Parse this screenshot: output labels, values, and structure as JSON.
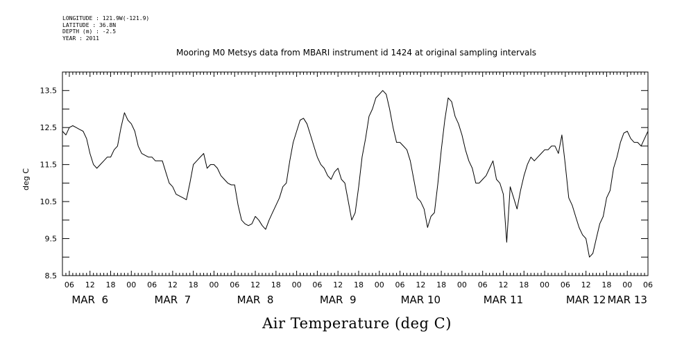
{
  "header": {
    "lines": [
      "LONGITUDE : 121.9W(-121.9)",
      "LATITUDE : 36.8N",
      "DEPTH (m) : -2.5",
      "YEAR : 2011"
    ]
  },
  "chart_data": {
    "type": "line",
    "title": "Mooring M0 Metsys data from MBARI instrument id 1424 at original sampling intervals",
    "xlabel": "Air Temperature (deg C)",
    "ylabel": "deg C",
    "ylim": [
      8.5,
      14.0
    ],
    "yticks": [
      8.5,
      9.5,
      10.5,
      11.5,
      12.5,
      13.5
    ],
    "xlim_hours": [
      4,
      174
    ],
    "hour_ticks": [
      "06",
      "12",
      "18",
      "00",
      "06",
      "12",
      "18",
      "00",
      "06",
      "12",
      "18",
      "00",
      "06",
      "12",
      "18",
      "00",
      "06",
      "12",
      "18",
      "00",
      "06",
      "12",
      "18",
      "00",
      "06",
      "12",
      "18",
      "00",
      "06"
    ],
    "day_labels": [
      "MAR  6",
      "MAR  7",
      "MAR  8",
      "MAR  9",
      "MAR 10",
      "MAR 11",
      "MAR 12",
      "MAR 13"
    ],
    "grid": false,
    "series": [
      {
        "x": [
          4,
          5,
          6,
          7,
          8,
          9,
          10,
          11,
          12,
          13,
          14,
          15,
          16,
          17,
          18,
          19,
          20,
          21,
          22,
          23,
          24,
          25,
          26,
          27,
          28,
          29,
          30,
          31,
          32,
          33,
          34,
          35,
          36,
          37,
          38,
          39,
          40,
          41,
          42,
          43,
          44,
          45,
          46,
          47,
          48,
          49,
          50,
          51,
          52,
          53,
          54,
          55,
          56,
          57,
          58,
          59,
          60,
          61,
          62,
          63,
          64,
          65,
          66,
          67,
          68,
          69,
          70,
          71,
          72,
          73,
          74,
          75,
          76,
          77,
          78,
          79,
          80,
          81,
          82,
          83,
          84,
          85,
          86,
          87,
          88,
          89,
          90,
          91,
          92,
          93,
          94,
          95,
          96,
          97,
          98,
          99,
          100,
          101,
          102,
          103,
          104,
          105,
          106,
          107,
          108,
          109,
          110,
          111,
          112,
          113,
          114,
          115,
          116,
          117,
          118,
          119,
          120,
          121,
          122,
          123,
          124,
          125,
          126,
          127,
          128,
          129,
          130,
          131,
          132,
          133,
          134,
          135,
          136,
          137,
          138,
          139,
          140,
          141,
          142,
          143,
          144,
          145,
          146,
          147,
          148,
          149,
          150,
          151,
          152,
          153,
          154,
          155,
          156,
          157,
          158,
          159,
          160,
          161,
          162,
          163,
          164,
          165,
          166,
          167,
          168,
          169,
          170,
          171,
          172,
          173,
          174
        ],
        "y": [
          12.4,
          12.3,
          12.5,
          12.55,
          12.5,
          12.45,
          12.4,
          12.2,
          11.8,
          11.5,
          11.4,
          11.5,
          11.6,
          11.7,
          11.7,
          11.9,
          12.0,
          12.5,
          12.9,
          12.7,
          12.6,
          12.4,
          12.0,
          11.8,
          11.75,
          11.7,
          11.7,
          11.6,
          11.6,
          11.6,
          11.3,
          11.0,
          10.9,
          10.7,
          10.65,
          10.6,
          10.55,
          11.0,
          11.5,
          11.6,
          11.7,
          11.8,
          11.4,
          11.5,
          11.5,
          11.4,
          11.2,
          11.1,
          11.0,
          10.95,
          10.95,
          10.4,
          10.0,
          9.9,
          9.85,
          9.9,
          10.1,
          10.0,
          9.85,
          9.75,
          10.0,
          10.2,
          10.4,
          10.6,
          10.9,
          11.0,
          11.6,
          12.1,
          12.4,
          12.7,
          12.75,
          12.6,
          12.3,
          12.0,
          11.7,
          11.5,
          11.4,
          11.2,
          11.1,
          11.3,
          11.4,
          11.1,
          11.0,
          10.5,
          10.0,
          10.2,
          10.9,
          11.7,
          12.2,
          12.8,
          13.0,
          13.3,
          13.4,
          13.5,
          13.4,
          13.0,
          12.5,
          12.1,
          12.1,
          12.0,
          11.9,
          11.6,
          11.1,
          10.6,
          10.5,
          10.3,
          9.8,
          10.1,
          10.2,
          11.0,
          11.9,
          12.7,
          13.3,
          13.2,
          12.8,
          12.6,
          12.3,
          11.9,
          11.6,
          11.4,
          11.0,
          11.0,
          11.1,
          11.2,
          11.4,
          11.6,
          11.1,
          11.0,
          10.7,
          9.4,
          10.9,
          10.6,
          10.3,
          10.8,
          11.2,
          11.5,
          11.7,
          11.6,
          11.7,
          11.8,
          11.9,
          11.9,
          12.0,
          12.0,
          11.8,
          12.3,
          11.5,
          10.6,
          10.4,
          10.1,
          9.8,
          9.6,
          9.5,
          9.0,
          9.1,
          9.5,
          9.9,
          10.1,
          10.6,
          10.8,
          11.4,
          11.7,
          12.1,
          12.35,
          12.4,
          12.2,
          12.1,
          12.1,
          12.0,
          12.2,
          12.4
        ]
      }
    ]
  }
}
